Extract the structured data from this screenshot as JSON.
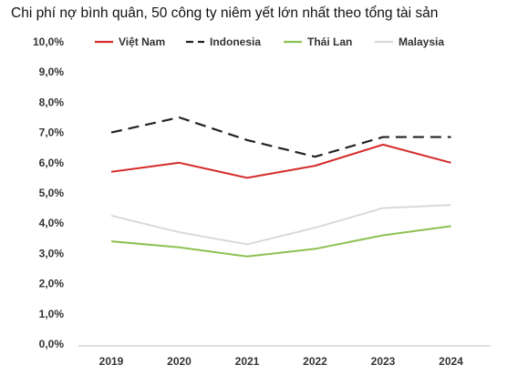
{
  "chart_data": {
    "type": "line",
    "title": "Chi phí nợ bình quân, 50 công ty niêm yết lớn nhất theo tổng tài sản",
    "xlabel": "",
    "ylabel": "",
    "categories": [
      "2019",
      "2020",
      "2021",
      "2022",
      "2023",
      "2024"
    ],
    "y_ticks": [
      "0,0%",
      "1,0%",
      "2,0%",
      "3,0%",
      "4,0%",
      "5,0%",
      "6,0%",
      "7,0%",
      "8,0%",
      "9,0%",
      "10,0%"
    ],
    "ylim": [
      0,
      10
    ],
    "grid": false,
    "legend_position": "top",
    "series": [
      {
        "name": "Việt Nam",
        "values": [
          5.7,
          6.0,
          5.5,
          5.9,
          6.6,
          6.0
        ],
        "color": "#d62b2b",
        "style": "solid"
      },
      {
        "name": "Indonesia",
        "values": [
          7.0,
          7.5,
          6.75,
          6.2,
          6.85,
          6.85
        ],
        "color": "#222222",
        "style": "dashed"
      },
      {
        "name": "Thái Lan",
        "values": [
          3.4,
          3.2,
          2.9,
          3.15,
          3.6,
          3.9
        ],
        "color": "#8cc152",
        "style": "solid"
      },
      {
        "name": "Malaysia",
        "values": [
          4.25,
          3.7,
          3.3,
          3.85,
          4.5,
          4.6
        ],
        "color": "#d9d9d9",
        "style": "solid"
      }
    ]
  }
}
